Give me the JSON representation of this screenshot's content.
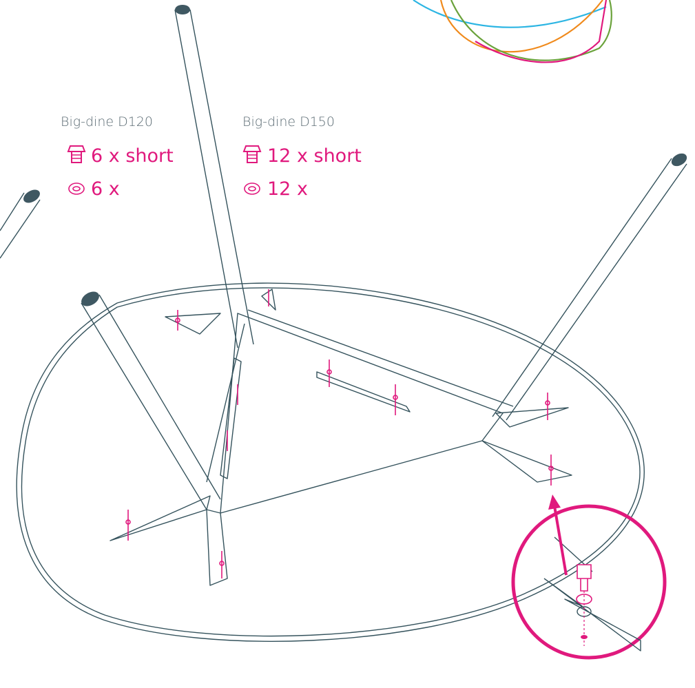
{
  "variants": [
    {
      "title": "Big-dine D120",
      "bolts": "6 x short",
      "washers": "6 x"
    },
    {
      "title": "Big-dine D150",
      "bolts": "12 x short",
      "washers": "12 x"
    }
  ]
}
